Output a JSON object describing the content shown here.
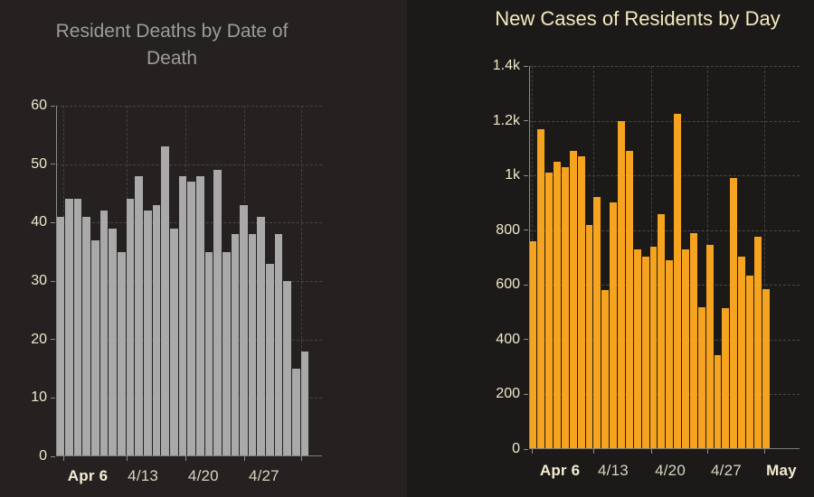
{
  "colors": {
    "background": "#211e1c",
    "panel_left_bg": "#242120",
    "panel_right_bg": "#1c1a18",
    "grid": "#4b4641",
    "axis": "#8c8c8c",
    "y_tick_label": "#efe8cc",
    "x_label_emphasis": "#f4edd3",
    "x_label_normal": "#d9d3c0",
    "deaths_bar": "#a9a9a9",
    "cases_bar": "#f6a41f",
    "deaths_title": "#9c9c9c",
    "cases_title": "#f3eac1"
  },
  "chart_data": [
    {
      "type": "bar",
      "title": "Resident Deaths by Date of Death",
      "values": [
        41,
        44,
        44,
        41,
        37,
        42,
        39,
        35,
        44,
        48,
        42,
        43,
        53,
        39,
        48,
        47,
        48,
        35,
        49,
        35,
        38,
        43,
        38,
        41,
        33,
        38,
        30,
        15,
        18
      ],
      "ylim": [
        0,
        60
      ],
      "y_tick_values": [
        0,
        10,
        20,
        30,
        40,
        50,
        60
      ],
      "y_tick_labels": [
        "0",
        "10",
        "20",
        "30",
        "40",
        "50",
        "60"
      ],
      "x_tick_labels": [
        {
          "text": "Apr 6",
          "emphasis": true
        },
        {
          "text": "4/13",
          "emphasis": false
        },
        {
          "text": "4/20",
          "emphasis": false
        },
        {
          "text": "4/27",
          "emphasis": false
        }
      ],
      "grid": "dashed",
      "legend": "none",
      "bar_color": "#a9a9a9"
    },
    {
      "type": "bar",
      "title": "New Cases of Residents by Day",
      "values": [
        760,
        1170,
        1010,
        1050,
        1030,
        1090,
        1070,
        820,
        920,
        580,
        900,
        1200,
        1090,
        730,
        705,
        740,
        860,
        690,
        1225,
        730,
        790,
        520,
        745,
        345,
        515,
        990,
        705,
        635,
        775,
        585
      ],
      "ylim": [
        0,
        1400
      ],
      "y_tick_values": [
        0,
        200,
        400,
        600,
        800,
        1000,
        1200,
        1400
      ],
      "y_tick_labels": [
        "0",
        "200",
        "400",
        "600",
        "800",
        "1k",
        "1.2k",
        "1.4k"
      ],
      "x_tick_labels": [
        {
          "text": "Apr 6",
          "emphasis": true
        },
        {
          "text": "4/13",
          "emphasis": false
        },
        {
          "text": "4/20",
          "emphasis": false
        },
        {
          "text": "4/27",
          "emphasis": false
        },
        {
          "text": "May",
          "emphasis": true
        }
      ],
      "grid": "dashed",
      "legend": "none",
      "bar_color": "#f6a41f"
    }
  ]
}
